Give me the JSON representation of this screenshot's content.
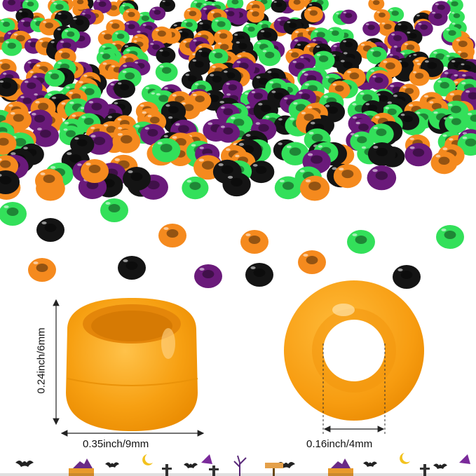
{
  "dimensions": {
    "height_label": "0.24inch/6mm",
    "width_label": "0.35inch/9mm",
    "hole_label": "0.16inch/4mm"
  },
  "colors": {
    "orange": "#f58a1e",
    "green": "#33e05a",
    "purple": "#6a1a7a",
    "black": "#141414",
    "big_bead": "#f8a415"
  },
  "decoration": {
    "items": [
      "bat-icon",
      "witch-hat-icon",
      "moon-icon",
      "grave-cross-icon",
      "haunted-house-icon",
      "spooky-tree-icon",
      "signpost-icon"
    ]
  }
}
